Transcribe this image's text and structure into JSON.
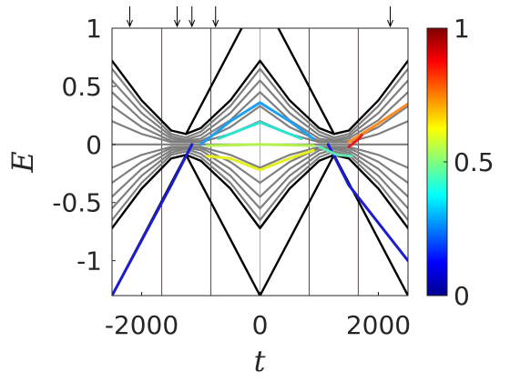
{
  "chart_data": {
    "type": "line",
    "xlabel": "t",
    "ylabel": "E",
    "xlim": [
      -2500,
      2500
    ],
    "ylim": [
      -1.3,
      1.0
    ],
    "x_ticks": [
      {
        "value": -2000,
        "label": "-2000"
      },
      {
        "value": 0,
        "label": "0"
      },
      {
        "value": 2000,
        "label": "2000"
      }
    ],
    "y_ticks": [
      {
        "value": 1,
        "label": "1"
      },
      {
        "value": 0.5,
        "label": "0.5"
      },
      {
        "value": 0,
        "label": "0"
      },
      {
        "value": -0.5,
        "label": "-0.5"
      },
      {
        "value": -1,
        "label": "-1"
      }
    ],
    "colorbar": {
      "colormap": "jet",
      "range": [
        0,
        1
      ],
      "ticks": [
        {
          "value": 1,
          "label": "1"
        },
        {
          "value": 0.5,
          "label": "0.5"
        },
        {
          "value": 0,
          "label": "0"
        }
      ]
    },
    "vertical_lines": [
      {
        "x": -1660,
        "color": "#b22222"
      },
      {
        "x": -830,
        "color": "#b22222"
      },
      {
        "x": 0,
        "color": "#e8a33d"
      },
      {
        "x": 830,
        "color": "#b22222"
      },
      {
        "x": 1660,
        "color": "#b22222"
      }
    ],
    "top_arrows_x": [
      -2200,
      -1400,
      -1150,
      -750,
      2200
    ],
    "series": [
      {
        "color": "#000000",
        "points": [
          [
            -2500,
            0.72
          ],
          [
            -2000,
            0.38
          ],
          [
            -1500,
            0.12
          ],
          [
            -1250,
            0.09
          ],
          [
            -1000,
            0.14
          ],
          [
            -500,
            0.38
          ],
          [
            0,
            0.72
          ],
          [
            500,
            0.38
          ],
          [
            1000,
            0.14
          ],
          [
            1250,
            0.09
          ],
          [
            1500,
            0.12
          ],
          [
            2000,
            0.38
          ],
          [
            2500,
            0.72
          ]
        ]
      },
      {
        "color": "#7f7f7f",
        "points": [
          [
            -2500,
            0.65
          ],
          [
            -2000,
            0.33
          ],
          [
            -1500,
            0.09
          ],
          [
            -1250,
            0.06
          ],
          [
            -1000,
            0.11
          ],
          [
            -500,
            0.33
          ],
          [
            0,
            0.65
          ],
          [
            500,
            0.33
          ],
          [
            1000,
            0.11
          ],
          [
            1250,
            0.06
          ],
          [
            1500,
            0.09
          ],
          [
            2000,
            0.33
          ],
          [
            2500,
            0.65
          ]
        ]
      },
      {
        "color": "#7f7f7f",
        "points": [
          [
            -2500,
            0.55
          ],
          [
            -2000,
            0.27
          ],
          [
            -1500,
            0.07
          ],
          [
            -1250,
            0.04
          ],
          [
            -1000,
            0.08
          ],
          [
            -500,
            0.27
          ],
          [
            0,
            0.55
          ],
          [
            500,
            0.27
          ],
          [
            1000,
            0.08
          ],
          [
            1250,
            0.04
          ],
          [
            1500,
            0.07
          ],
          [
            2000,
            0.27
          ],
          [
            2500,
            0.55
          ]
        ]
      },
      {
        "color": "#7f7f7f",
        "points": [
          [
            -2500,
            0.45
          ],
          [
            -2000,
            0.21
          ],
          [
            -1500,
            0.05
          ],
          [
            -1250,
            0.03
          ],
          [
            -1000,
            0.05
          ],
          [
            -500,
            0.21
          ],
          [
            0,
            0.45
          ],
          [
            500,
            0.21
          ],
          [
            1000,
            0.05
          ],
          [
            1250,
            0.03
          ],
          [
            1500,
            0.05
          ],
          [
            2000,
            0.21
          ],
          [
            2500,
            0.45
          ]
        ]
      },
      {
        "color": "#7f7f7f",
        "points": [
          [
            -2500,
            0.33
          ],
          [
            -2000,
            0.15
          ],
          [
            -1500,
            0.03
          ],
          [
            -1250,
            0.02
          ],
          [
            -1000,
            0.03
          ],
          [
            -500,
            0.15
          ],
          [
            0,
            0.33
          ],
          [
            500,
            0.15
          ],
          [
            1000,
            0.03
          ],
          [
            1250,
            0.02
          ],
          [
            1500,
            0.03
          ],
          [
            2000,
            0.15
          ],
          [
            2500,
            0.33
          ]
        ]
      },
      {
        "color": "#7f7f7f",
        "points": [
          [
            -2500,
            0.2
          ],
          [
            -2000,
            0.09
          ],
          [
            -1500,
            0.02
          ],
          [
            -1000,
            0.02
          ],
          [
            -500,
            0.09
          ],
          [
            0,
            0.2
          ],
          [
            500,
            0.09
          ],
          [
            1000,
            0.02
          ],
          [
            1500,
            0.02
          ],
          [
            2000,
            0.09
          ],
          [
            2500,
            0.2
          ]
        ]
      },
      {
        "color": "#7f7f7f",
        "points": [
          [
            -2500,
            0.0
          ],
          [
            0,
            0.0
          ],
          [
            2500,
            0.0
          ]
        ]
      },
      {
        "color": "#7f7f7f",
        "points": [
          [
            -2500,
            -0.2
          ],
          [
            -2000,
            -0.09
          ],
          [
            -1500,
            -0.02
          ],
          [
            -1000,
            -0.02
          ],
          [
            -500,
            -0.09
          ],
          [
            0,
            -0.2
          ],
          [
            500,
            -0.09
          ],
          [
            1000,
            -0.02
          ],
          [
            1500,
            -0.02
          ],
          [
            2000,
            -0.09
          ],
          [
            2500,
            -0.2
          ]
        ]
      },
      {
        "color": "#7f7f7f",
        "points": [
          [
            -2500,
            -0.33
          ],
          [
            -2000,
            -0.15
          ],
          [
            -1500,
            -0.03
          ],
          [
            -1250,
            -0.02
          ],
          [
            -1000,
            -0.03
          ],
          [
            -500,
            -0.15
          ],
          [
            0,
            -0.33
          ],
          [
            500,
            -0.15
          ],
          [
            1000,
            -0.03
          ],
          [
            1250,
            -0.02
          ],
          [
            1500,
            -0.03
          ],
          [
            2000,
            -0.15
          ],
          [
            2500,
            -0.33
          ]
        ]
      },
      {
        "color": "#7f7f7f",
        "points": [
          [
            -2500,
            -0.45
          ],
          [
            -2000,
            -0.21
          ],
          [
            -1500,
            -0.05
          ],
          [
            -1250,
            -0.03
          ],
          [
            -1000,
            -0.05
          ],
          [
            -500,
            -0.21
          ],
          [
            0,
            -0.45
          ],
          [
            500,
            -0.21
          ],
          [
            1000,
            -0.05
          ],
          [
            1250,
            -0.03
          ],
          [
            1500,
            -0.05
          ],
          [
            2000,
            -0.21
          ],
          [
            2500,
            -0.45
          ]
        ]
      },
      {
        "color": "#7f7f7f",
        "points": [
          [
            -2500,
            -0.55
          ],
          [
            -2000,
            -0.27
          ],
          [
            -1500,
            -0.07
          ],
          [
            -1250,
            -0.04
          ],
          [
            -1000,
            -0.08
          ],
          [
            -500,
            -0.27
          ],
          [
            0,
            -0.55
          ],
          [
            500,
            -0.27
          ],
          [
            1000,
            -0.08
          ],
          [
            1250,
            -0.04
          ],
          [
            1500,
            -0.07
          ],
          [
            2000,
            -0.27
          ],
          [
            2500,
            -0.55
          ]
        ]
      },
      {
        "color": "#7f7f7f",
        "points": [
          [
            -2500,
            -0.65
          ],
          [
            -2000,
            -0.33
          ],
          [
            -1500,
            -0.09
          ],
          [
            -1250,
            -0.06
          ],
          [
            -1000,
            -0.11
          ],
          [
            -500,
            -0.33
          ],
          [
            0,
            -0.65
          ],
          [
            500,
            -0.33
          ],
          [
            1000,
            -0.11
          ],
          [
            1250,
            -0.06
          ],
          [
            1500,
            -0.09
          ],
          [
            2000,
            -0.33
          ],
          [
            2500,
            -0.65
          ]
        ]
      },
      {
        "color": "#000000",
        "points": [
          [
            -2500,
            -1.3
          ],
          [
            -1250,
            -0.09
          ],
          [
            0,
            -1.3
          ],
          [
            1250,
            -0.09
          ],
          [
            2500,
            -1.3
          ]
        ]
      },
      {
        "color": "#000000",
        "points": [
          [
            -2500,
            -0.72
          ],
          [
            -2000,
            -0.38
          ],
          [
            -1500,
            -0.12
          ],
          [
            -1250,
            -0.09
          ],
          [
            -1000,
            -0.14
          ],
          [
            -500,
            -0.38
          ],
          [
            0,
            -0.72
          ],
          [
            500,
            -0.38
          ],
          [
            1000,
            -0.14
          ],
          [
            1250,
            -0.09
          ],
          [
            1500,
            -0.12
          ],
          [
            2000,
            -0.38
          ],
          [
            2500,
            -0.72
          ]
        ]
      },
      {
        "color": "#000000",
        "points": [
          [
            -1250,
            0.09
          ],
          [
            0,
            1.3
          ],
          [
            1250,
            0.09
          ]
        ]
      },
      {
        "color": "#1c1cd0",
        "points": [
          [
            -2500,
            -1.3
          ],
          [
            -1500,
            -0.35
          ],
          [
            -1250,
            -0.1
          ],
          [
            -1150,
            0.0
          ]
        ]
      },
      {
        "color": "#1c1cd0",
        "points": [
          [
            1150,
            0.0
          ],
          [
            1250,
            -0.1
          ],
          [
            1500,
            -0.35
          ],
          [
            2500,
            -1.0
          ]
        ]
      },
      {
        "color": "#1ea0f0",
        "points": [
          [
            -1000,
            0.0
          ],
          [
            -500,
            0.2
          ],
          [
            0,
            0.36
          ],
          [
            500,
            0.2
          ],
          [
            900,
            0.05
          ]
        ]
      },
      {
        "color": "#2ee0d0",
        "points": [
          [
            -700,
            0.05
          ],
          [
            0,
            0.19
          ],
          [
            700,
            0.05
          ]
        ]
      },
      {
        "color": "#b4f050",
        "points": [
          [
            -900,
            -0.01
          ],
          [
            0,
            0.0
          ],
          [
            900,
            -0.01
          ]
        ]
      },
      {
        "color": "#e6f020",
        "points": [
          [
            -900,
            -0.1
          ],
          [
            -500,
            -0.12
          ],
          [
            0,
            -0.22
          ],
          [
            500,
            -0.12
          ],
          [
            900,
            -0.05
          ]
        ]
      },
      {
        "color": "#60e8b0",
        "points": [
          [
            1000,
            -0.02
          ],
          [
            1300,
            -0.09
          ],
          [
            1550,
            -0.1
          ]
        ]
      },
      {
        "color": "#ff8c20",
        "points": [
          [
            1500,
            0.02
          ],
          [
            2000,
            0.18
          ],
          [
            2500,
            0.35
          ]
        ]
      },
      {
        "color": "#e02020",
        "points": [
          [
            1500,
            -0.02
          ],
          [
            1650,
            0.04
          ],
          [
            1720,
            0.08
          ]
        ]
      }
    ]
  }
}
